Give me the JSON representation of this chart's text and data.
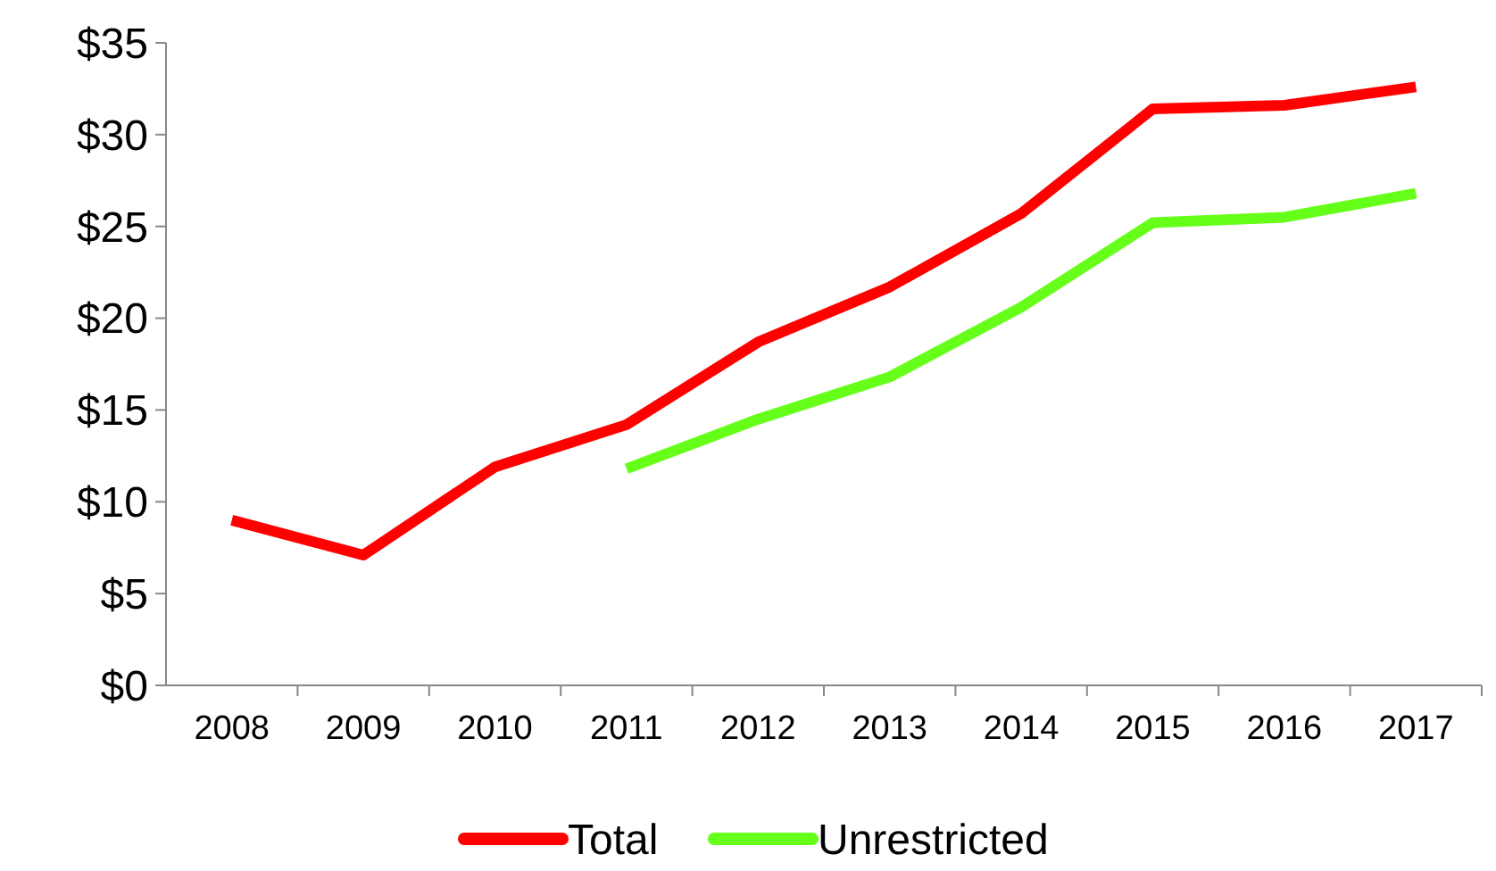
{
  "chart_data": {
    "type": "line",
    "categories": [
      "2008",
      "2009",
      "2010",
      "2011",
      "2012",
      "2013",
      "2014",
      "2015",
      "2016",
      "2017"
    ],
    "series": [
      {
        "name": "Total",
        "color": "#ff0000",
        "values": [
          9.0,
          7.1,
          11.9,
          14.2,
          18.7,
          21.7,
          25.7,
          31.4,
          31.6,
          32.6
        ]
      },
      {
        "name": "Unrestricted",
        "color": "#66ff1a",
        "values": [
          null,
          null,
          null,
          11.8,
          14.5,
          16.8,
          20.6,
          25.2,
          25.5,
          26.8
        ]
      }
    ],
    "ylim": [
      0,
      35
    ],
    "yticks": [
      {
        "value": 0,
        "label": "$0"
      },
      {
        "value": 5,
        "label": "$5"
      },
      {
        "value": 10,
        "label": "$10"
      },
      {
        "value": 15,
        "label": "$15"
      },
      {
        "value": 20,
        "label": "$20"
      },
      {
        "value": 25,
        "label": "$25"
      },
      {
        "value": 30,
        "label": "$30"
      },
      {
        "value": 35,
        "label": "$35"
      }
    ],
    "grid": false,
    "legend": "bottom",
    "marker": "none",
    "line_style": "solid"
  }
}
